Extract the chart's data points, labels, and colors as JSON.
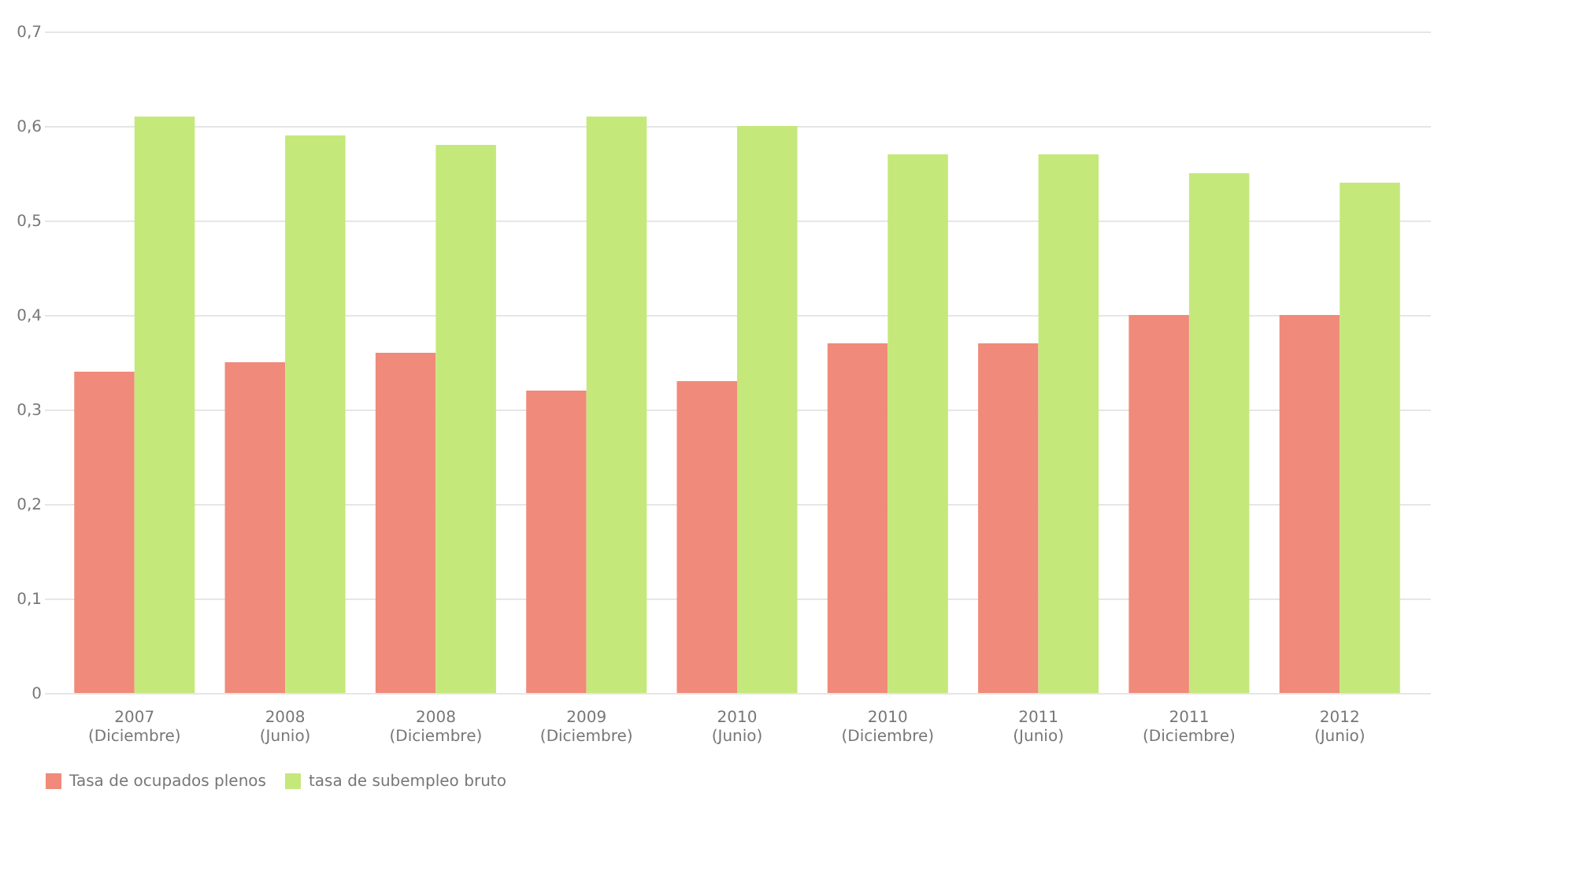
{
  "chart_data": {
    "type": "bar",
    "categories": [
      "2007 (Diciembre)",
      "2008 (Junio)",
      "2008 (Diciembre)",
      "2009 (Diciembre)",
      "2010 (Junio)",
      "2010 (Diciembre)",
      "2011 (Junio)",
      "2011 (Diciembre)",
      "2012 (Junio)"
    ],
    "series": [
      {
        "name": "Tasa de ocupados plenos",
        "color": "#f08a7a",
        "values": [
          0.34,
          0.35,
          0.36,
          0.32,
          0.33,
          0.37,
          0.37,
          0.4,
          0.4
        ]
      },
      {
        "name": "tasa de subempleo bruto",
        "color": "#c5e87a",
        "values": [
          0.61,
          0.59,
          0.58,
          0.61,
          0.6,
          0.57,
          0.57,
          0.55,
          0.54
        ]
      }
    ],
    "ylim": [
      0,
      0.7
    ],
    "yticks": [
      {
        "value": 0,
        "label": "0"
      },
      {
        "value": 0.1,
        "label": "0,1"
      },
      {
        "value": 0.2,
        "label": "0,2"
      },
      {
        "value": 0.3,
        "label": "0,3"
      },
      {
        "value": 0.4,
        "label": "0,4"
      },
      {
        "value": 0.5,
        "label": "0,5"
      },
      {
        "value": 0.6,
        "label": "0,6"
      },
      {
        "value": 0.7,
        "label": "0,7"
      }
    ],
    "grid": "y",
    "legend": "bottom"
  }
}
